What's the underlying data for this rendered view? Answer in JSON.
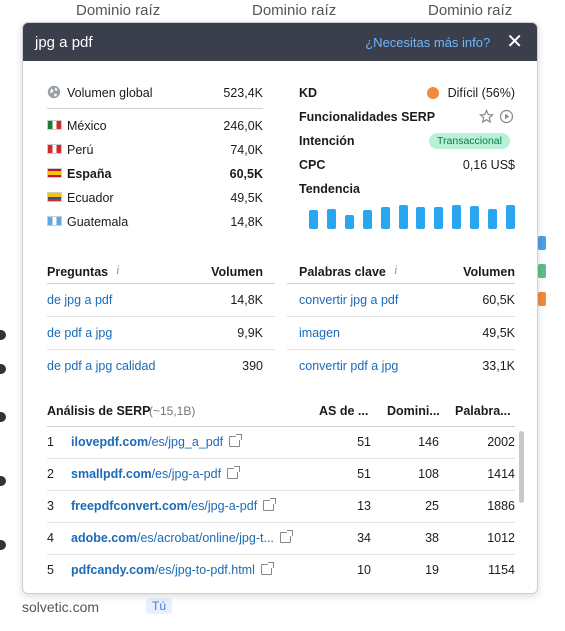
{
  "background": {
    "top_dropdowns": [
      "Dominio raíz",
      "Dominio raíz",
      "Dominio raíz"
    ],
    "bottom_text": "solvetic.com",
    "bottom_tag": "Tú"
  },
  "header": {
    "title": "jpg a pdf",
    "help_link": "¿Necesitas más info?",
    "close": "✕"
  },
  "volume": {
    "global_label": "Volumen global",
    "global_value": "523,4K",
    "countries": [
      {
        "name": "México",
        "value": "246,0K",
        "bold": false
      },
      {
        "name": "Perú",
        "value": "74,0K",
        "bold": false
      },
      {
        "name": "España",
        "value": "60,5K",
        "bold": true
      },
      {
        "name": "Ecuador",
        "value": "49,5K",
        "bold": false
      },
      {
        "name": "Guatemala",
        "value": "14,8K",
        "bold": false
      }
    ]
  },
  "metrics": {
    "kd_label": "KD",
    "kd_value": "Difícil (56%)",
    "kd_color": "#f08a3c",
    "serp_label": "Funcionalidades SERP",
    "intent_label": "Intención",
    "intent_value": "Transaccional",
    "cpc_label": "CPC",
    "cpc_value": "0,16 US$",
    "trend_label": "Tendencia",
    "trend_values": [
      0.78,
      0.82,
      0.6,
      0.78,
      0.92,
      1.0,
      0.92,
      0.92,
      1.0,
      0.95,
      0.82,
      1.0
    ],
    "trend_color": "#2aa5ef"
  },
  "questions": {
    "header": "Preguntas",
    "col": "Volumen",
    "rows": [
      {
        "text": "de jpg a pdf",
        "value": "14,8K"
      },
      {
        "text": "de pdf a jpg",
        "value": "9,9K"
      },
      {
        "text": "de pdf a jpg calidad",
        "value": "390"
      }
    ]
  },
  "keywords": {
    "header": "Palabras clave",
    "col": "Volumen",
    "rows": [
      {
        "text": "convertir jpg a pdf",
        "value": "60,5K"
      },
      {
        "text": "imagen",
        "value": "49,5K"
      },
      {
        "text": "convertir pdf a jpg",
        "value": "33,1K"
      }
    ]
  },
  "serp": {
    "title": "Análisis de SERP",
    "count": "(~15,1B)",
    "cols": [
      "AS de ...",
      "Domini...",
      "Palabra..."
    ],
    "rows": [
      {
        "rank": "1",
        "domain": "ilovepdf.com",
        "path": "/es/jpg_a_pdf",
        "as": "51",
        "dom": "146",
        "kw": "2002"
      },
      {
        "rank": "2",
        "domain": "smallpdf.com",
        "path": "/es/jpg-a-pdf",
        "as": "51",
        "dom": "108",
        "kw": "1414"
      },
      {
        "rank": "3",
        "domain": "freepdfconvert.com",
        "path": "/es/jpg-a-pdf",
        "as": "13",
        "dom": "25",
        "kw": "1886"
      },
      {
        "rank": "4",
        "domain": "adobe.com",
        "path": "/es/acrobat/online/jpg-t...",
        "as": "34",
        "dom": "38",
        "kw": "1012"
      },
      {
        "rank": "5",
        "domain": "pdfcandy.com",
        "path": "/es/jpg-to-pdf.html",
        "as": "10",
        "dom": "19",
        "kw": "1154"
      }
    ]
  }
}
